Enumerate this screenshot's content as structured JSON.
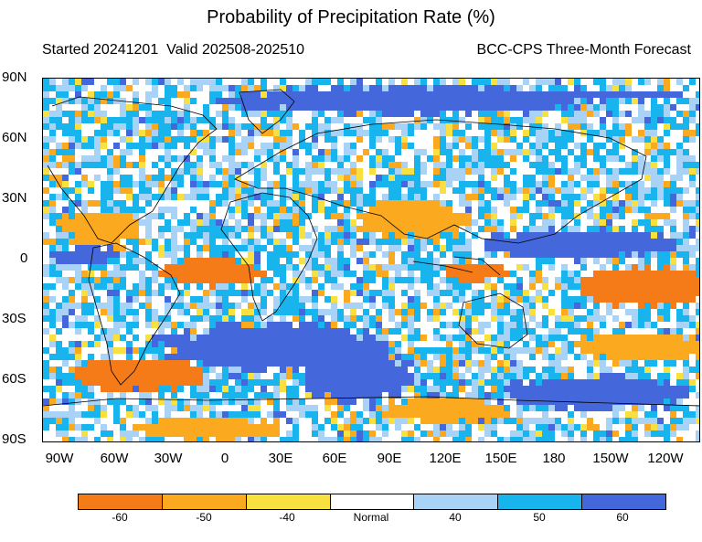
{
  "title": "Probability of Precipitation Rate (%)",
  "subtitle_left": "Started 20241201  Valid 202508-202510",
  "subtitle_right": "BCC-CPS Three-Month Forecast",
  "lat_labels": [
    "90N",
    "60N",
    "30N",
    "0",
    "30S",
    "60S",
    "90S"
  ],
  "lon_labels": [
    "90W",
    "60W",
    "30W",
    "0",
    "30E",
    "60E",
    "90E",
    "120E",
    "150E",
    "180",
    "150W",
    "120W"
  ],
  "legend": {
    "colors": [
      "#f57a18",
      "#fbaa20",
      "#f8e040",
      "#ffffff",
      "#a8d2f6",
      "#18b4ee",
      "#4468dc"
    ],
    "labels": [
      "-60",
      "-50",
      "-40",
      "Normal",
      "40",
      "50",
      "60"
    ]
  },
  "palette": {
    "ocean_blue": "#18b4ee",
    "light_blue": "#a8d2f6",
    "dark_blue": "#4468dc",
    "orange": "#f57a18",
    "light_orange": "#fbaa20",
    "yellow": "#f8e040"
  }
}
